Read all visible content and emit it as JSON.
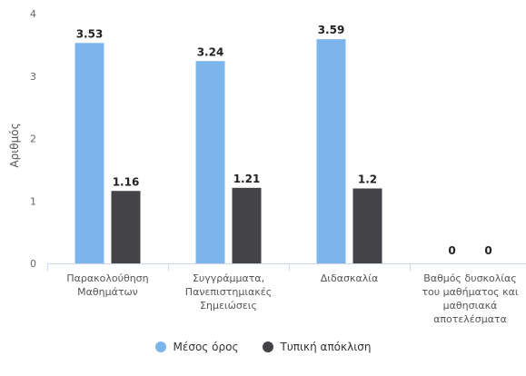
{
  "chart_data": {
    "type": "bar",
    "ylabel": "Αριθμός",
    "ylim": [
      0,
      4
    ],
    "yticks": [
      0,
      1,
      2,
      3,
      4
    ],
    "grid": false,
    "legend_position": "bottom",
    "categories": [
      [
        "Παρακολούθηση",
        "Μαθημάτων"
      ],
      [
        "Συγγράμματα,",
        "Πανεπιστημιακές",
        "Σημειώσεις"
      ],
      [
        "Διδασκαλία"
      ],
      [
        "Βαθμός δυσκολίας",
        "του μαθήματος και",
        "μαθησιακά",
        "αποτελέσματα"
      ]
    ],
    "series": [
      {
        "name": "Μέσος όρος",
        "color": "#7cb5ec",
        "values": [
          3.53,
          3.24,
          3.59,
          0
        ]
      },
      {
        "name": "Τυπική απόκλιση",
        "color": "#434348",
        "values": [
          1.16,
          1.21,
          1.2,
          0
        ]
      }
    ]
  }
}
